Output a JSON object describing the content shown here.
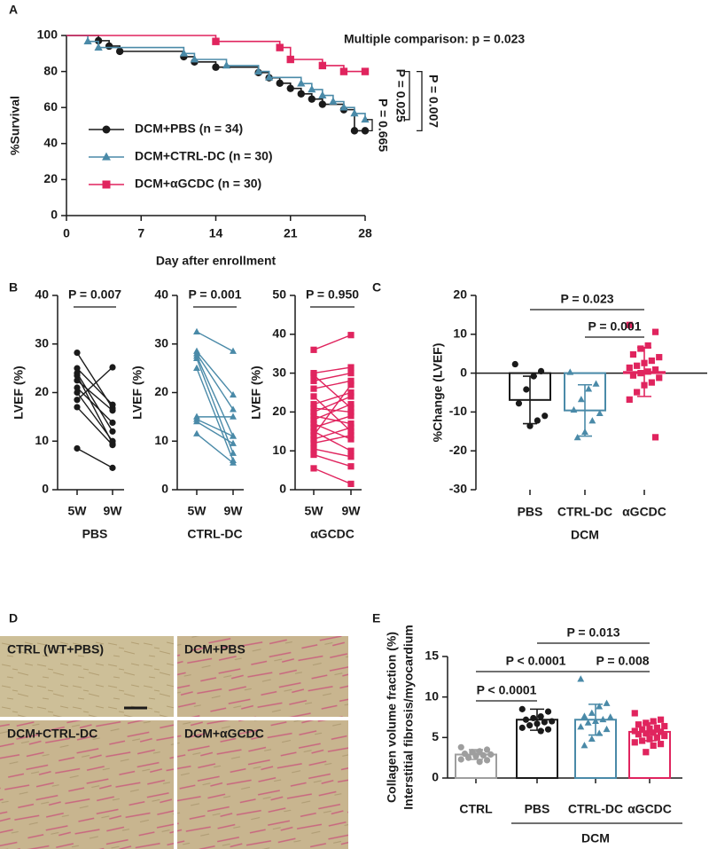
{
  "chart_data": [
    {
      "type": "survival",
      "panel": "A",
      "xlabel": "Day after enrollment",
      "ylabel": "%Survival",
      "xlim": [
        0,
        28
      ],
      "xticks": [
        0,
        7,
        14,
        21,
        28
      ],
      "ylim": [
        0,
        100
      ],
      "yticks": [
        0,
        20,
        40,
        60,
        80,
        100
      ],
      "legend": "lower left",
      "annotations": [
        "Multiple comparison:  p = 0.023",
        "P = 0.665",
        "P = 0.025",
        "P = 0.007"
      ],
      "series": [
        {
          "name": "DCM+PBS (n = 34)",
          "color": "#1a1a1a",
          "marker": "circle",
          "x": [
            0,
            3,
            4,
            5,
            11,
            12,
            14,
            18,
            19,
            20,
            21,
            22,
            23,
            24,
            26,
            27,
            28
          ],
          "values": [
            100,
            97.1,
            94.1,
            91.2,
            88.2,
            85.3,
            82.4,
            79.4,
            76.5,
            73.5,
            70.6,
            67.6,
            64.7,
            61.8,
            58.8,
            47.1,
            47.1
          ]
        },
        {
          "name": "DCM+CTRL-DC (n = 30)",
          "color": "#4a8aa8",
          "marker": "triangle",
          "x": [
            0,
            2,
            3,
            11,
            12,
            15,
            18,
            19,
            22,
            23,
            24,
            25,
            26,
            27,
            28
          ],
          "values": [
            100,
            96.7,
            93.3,
            90.0,
            86.7,
            83.3,
            80.0,
            76.7,
            73.3,
            70.0,
            66.7,
            63.3,
            60.0,
            56.7,
            53.3
          ]
        },
        {
          "name": "DCM+αGCDC (n = 30)",
          "color": "#e0245e",
          "marker": "square",
          "x": [
            0,
            14,
            20,
            21,
            24,
            26,
            28
          ],
          "values": [
            100,
            96.7,
            93.3,
            86.7,
            83.3,
            80.0,
            80.0
          ]
        }
      ]
    },
    {
      "type": "paired",
      "panel": "B",
      "title": "P = 0.007",
      "xlabel": "PBS",
      "ylabel": "LVEF (%)",
      "categories": [
        "5W",
        "9W"
      ],
      "ylim": [
        0,
        40
      ],
      "yticks": [
        0,
        10,
        20,
        30,
        40
      ],
      "color": "#1a1a1a",
      "marker": "circle",
      "values": [
        [
          28.2,
          16.8
        ],
        [
          25,
          17.5
        ],
        [
          24,
          12
        ],
        [
          23.5,
          9.5
        ],
        [
          22.5,
          16.3
        ],
        [
          21,
          13.8
        ],
        [
          20,
          10
        ],
        [
          18.5,
          25.2
        ],
        [
          17,
          9.2
        ],
        [
          8.5,
          4.5
        ]
      ]
    },
    {
      "type": "paired",
      "title": "P = 0.001",
      "xlabel": "CTRL-DC",
      "ylabel": "LVEF (%)",
      "categories": [
        "5W",
        "9W"
      ],
      "ylim": [
        0,
        40
      ],
      "yticks": [
        0,
        10,
        20,
        30,
        40
      ],
      "color": "#4a8aa8",
      "marker": "triangle",
      "values": [
        [
          32.5,
          28.5
        ],
        [
          28.5,
          19.5
        ],
        [
          28,
          16.5
        ],
        [
          27.5,
          11
        ],
        [
          27,
          7.5
        ],
        [
          25,
          6
        ],
        [
          15,
          15
        ],
        [
          14.5,
          11
        ],
        [
          14,
          9.5
        ],
        [
          11.5,
          5.5
        ]
      ]
    },
    {
      "type": "paired",
      "title": "P = 0.950",
      "xlabel": "αGCDC",
      "ylabel": "LVEF (%)",
      "categories": [
        "5W",
        "9W"
      ],
      "ylim": [
        0,
        50
      ],
      "yticks": [
        0,
        10,
        20,
        30,
        40,
        50
      ],
      "color": "#e0245e",
      "marker": "square",
      "values": [
        [
          36,
          39.8
        ],
        [
          30,
          31.5
        ],
        [
          29.5,
          21
        ],
        [
          28,
          30
        ],
        [
          26,
          28
        ],
        [
          24,
          15
        ],
        [
          22,
          25
        ],
        [
          21,
          20
        ],
        [
          20,
          24
        ],
        [
          19,
          17
        ],
        [
          18,
          22
        ],
        [
          17,
          13
        ],
        [
          16,
          19
        ],
        [
          15,
          10
        ],
        [
          14,
          27
        ],
        [
          13,
          16
        ],
        [
          12,
          14
        ],
        [
          10.5,
          8.5
        ],
        [
          9,
          6
        ],
        [
          5.5,
          1.5
        ]
      ]
    },
    {
      "type": "bar-scatter",
      "panel": "C",
      "ylabel": "%Change (LVEF)",
      "group_label": "DCM",
      "categories": [
        "PBS",
        "CTRL-DC",
        "αGCDC"
      ],
      "ylim": [
        -30,
        20
      ],
      "yticks": [
        -30,
        -20,
        -10,
        0,
        10,
        20
      ],
      "colors": [
        "#1a1a1a",
        "#4a8aa8",
        "#e0245e"
      ],
      "markers": [
        "circle",
        "triangle",
        "square"
      ],
      "values": [
        -6.9,
        -9.6,
        0.3
      ],
      "errors": [
        6.1,
        6.6,
        6.3
      ],
      "points": [
        [
          2.3,
          0.5,
          -0.8,
          -4.2,
          -7.8,
          -11,
          -12.2,
          -13.6
        ],
        [
          0.2,
          -2.8,
          -4.1,
          -6.8,
          -9.5,
          -10.4,
          -12.3,
          -15.2,
          -16.6
        ],
        [
          12.4,
          10.6,
          7.1,
          6.3,
          4.8,
          4.1,
          3.2,
          2.6,
          1.9,
          1.4,
          0.9,
          0.4,
          0.0,
          -0.6,
          -1.2,
          -2.4,
          -3.1,
          -4.9,
          -6.8,
          -16.5
        ]
      ],
      "annotations": [
        "P = 0.023",
        "P = 0.001"
      ]
    },
    {
      "type": "image-grid",
      "panel": "D",
      "images": [
        "CTRL (WT+PBS)",
        "DCM+PBS",
        "DCM+CTRL-DC",
        "DCM+αGCDC"
      ]
    },
    {
      "type": "bar-scatter",
      "panel": "E",
      "ylabel": [
        "Collagen volume fraction (%)",
        "Interstitial fibrosis/myocardium"
      ],
      "group_label": "DCM",
      "categories": [
        "CTRL",
        "PBS",
        "CTRL-DC",
        "αGCDC"
      ],
      "ylim": [
        0,
        15
      ],
      "yticks": [
        0,
        5,
        10,
        15
      ],
      "colors": [
        "#9e9e9e",
        "#1a1a1a",
        "#4a8aa8",
        "#e0245e"
      ],
      "markers": [
        "circle",
        "circle",
        "triangle",
        "square"
      ],
      "values": [
        2.9,
        7.2,
        7.2,
        5.7
      ],
      "errors": [
        0.6,
        1.3,
        1.9,
        1.1
      ],
      "points": [
        [
          3.8,
          3.5,
          3.3,
          3.2,
          3.0,
          2.9,
          2.8,
          2.7,
          2.5,
          2.3,
          2.2,
          2.0
        ],
        [
          8.5,
          8.2,
          7.6,
          7.4,
          7.2,
          7.0,
          6.9,
          6.7,
          6.5,
          6.2,
          6.0,
          5.8
        ],
        [
          12.2,
          9.2,
          8.8,
          8.0,
          7.6,
          7.5,
          7.2,
          7.0,
          6.8,
          6.3,
          6.0,
          5.5,
          4.8,
          4.0
        ],
        [
          8.0,
          7.2,
          7.0,
          6.8,
          6.6,
          6.4,
          6.2,
          6.1,
          6.0,
          5.8,
          5.7,
          5.6,
          5.5,
          5.4,
          5.2,
          5.0,
          4.8,
          4.6,
          4.4,
          4.2,
          4.0,
          3.2
        ]
      ],
      "annotations": [
        "P < 0.0001",
        "P < 0.0001",
        "P = 0.013",
        "P = 0.008"
      ]
    }
  ]
}
